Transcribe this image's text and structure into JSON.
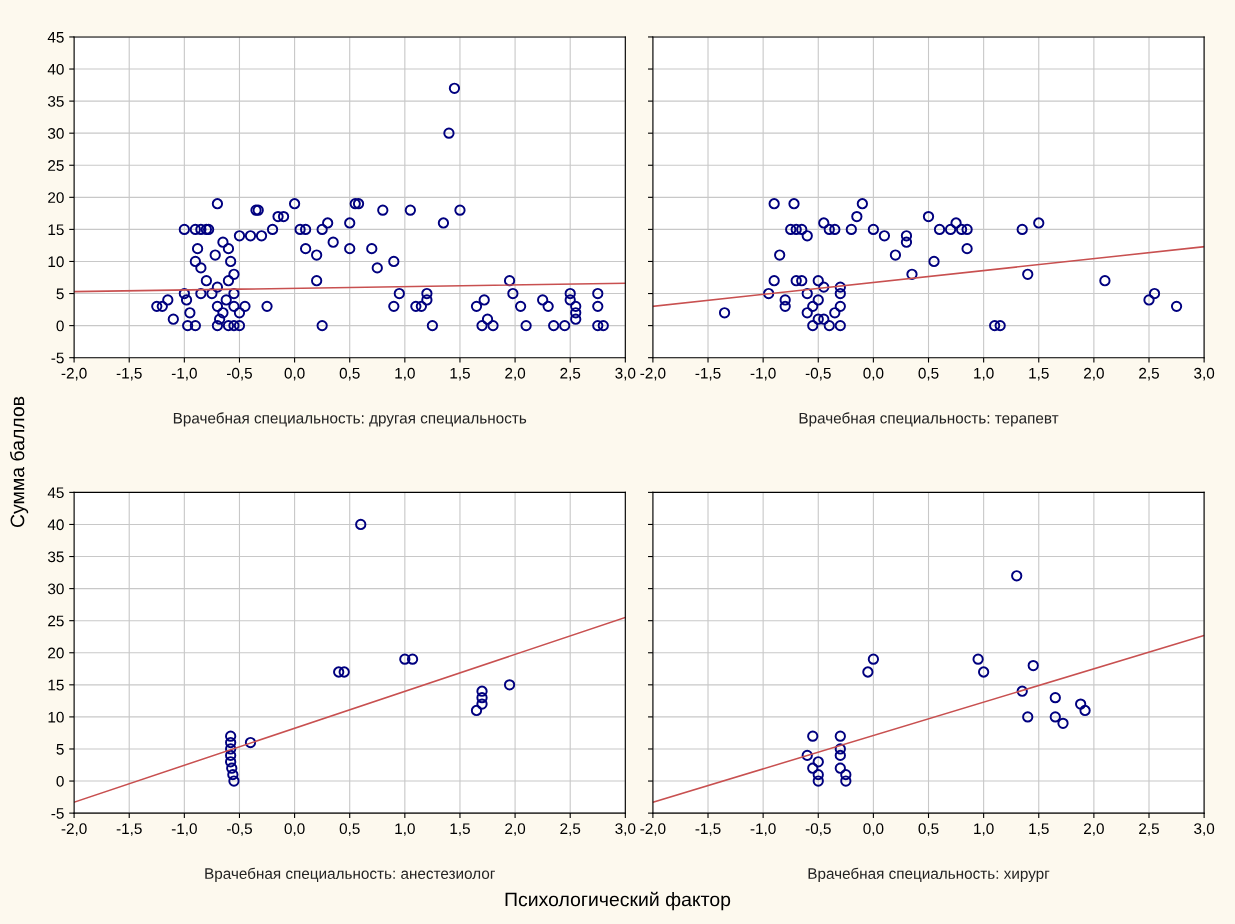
{
  "chart_data": [
    {
      "type": "scatter",
      "title": "Врачебная специальность: другая специальность",
      "ylabel": "Сумма баллов",
      "xlim": [
        -2,
        3
      ],
      "ylim": [
        -5,
        45
      ],
      "grid": true,
      "tick_labels": true,
      "xticks": [
        {
          "value": -2,
          "label": "-2,0"
        },
        {
          "value": -1.5,
          "label": "-1,5"
        },
        {
          "value": -1,
          "label": "-1,0"
        },
        {
          "value": -0.5,
          "label": "-0,5"
        },
        {
          "value": 0,
          "label": "0,0"
        },
        {
          "value": 0.5,
          "label": "0,5"
        },
        {
          "value": 1,
          "label": "1,0"
        },
        {
          "value": 1.5,
          "label": "1,5"
        },
        {
          "value": 2,
          "label": "2,0"
        },
        {
          "value": 2.5,
          "label": "2,5"
        },
        {
          "value": 3,
          "label": "3,0"
        }
      ],
      "yticks": [
        -5,
        0,
        5,
        10,
        15,
        20,
        25,
        30,
        35,
        40,
        45
      ],
      "series": [
        {
          "marker": "circle",
          "color": "#00007f",
          "x": [
            -1.25,
            -1.2,
            -1.15,
            -1.1,
            -1.0,
            -1.0,
            -0.98,
            -0.97,
            -0.95,
            -0.9,
            -0.9,
            -0.88,
            -0.9,
            -0.85,
            -0.85,
            -0.8,
            -0.85,
            -0.8,
            -0.78,
            -0.72,
            -0.7,
            -0.7,
            -0.7,
            -0.65,
            -0.6,
            -0.6,
            -0.58,
            -0.55,
            -0.55,
            -0.55,
            -0.55,
            -0.5,
            -0.5,
            -0.6,
            -0.65,
            -0.75,
            -0.68,
            -0.62,
            -0.7,
            -0.5,
            -0.45,
            -0.4,
            -0.35,
            -0.33,
            -0.25,
            -0.3,
            -0.2,
            -0.15,
            -0.1,
            0.0,
            0.05,
            0.1,
            0.1,
            0.2,
            0.2,
            0.25,
            0.25,
            0.3,
            0.35,
            0.5,
            0.5,
            0.55,
            0.58,
            0.7,
            0.75,
            0.8,
            0.9,
            0.9,
            0.95,
            1.05,
            1.1,
            1.15,
            1.2,
            1.2,
            1.25,
            1.35,
            1.4,
            1.45,
            1.5,
            1.65,
            1.7,
            1.72,
            1.75,
            1.8,
            1.95,
            1.98,
            2.05,
            2.1,
            2.25,
            2.3,
            2.35,
            2.45,
            2.5,
            2.5,
            2.55,
            2.55,
            2.55,
            2.75,
            2.75,
            2.75,
            2.8
          ],
          "values": [
            3,
            3,
            4,
            1,
            15,
            5,
            4,
            0,
            2,
            0,
            15,
            12,
            10,
            9,
            15,
            15,
            5,
            7,
            15,
            11,
            19,
            3,
            0,
            13,
            7,
            12,
            10,
            8,
            5,
            3,
            0,
            14,
            0,
            0,
            2,
            5,
            1,
            4,
            6,
            2,
            3,
            14,
            18,
            18,
            3,
            14,
            15,
            17,
            17,
            19,
            15,
            12,
            15,
            11,
            7,
            15,
            0,
            16,
            13,
            16,
            12,
            19,
            19,
            12,
            9,
            18,
            10,
            3,
            5,
            18,
            3,
            3,
            5,
            4,
            0,
            16,
            30,
            37,
            18,
            3,
            0,
            4,
            1,
            0,
            7,
            5,
            3,
            0,
            4,
            3,
            0,
            0,
            5,
            4,
            3,
            2,
            1,
            5,
            3,
            0,
            0
          ]
        },
        {
          "type": "line",
          "color": "#c85050",
          "x": [
            -2,
            3
          ],
          "values": [
            5.3,
            6.6
          ]
        }
      ]
    },
    {
      "type": "scatter",
      "title": "Врачебная специальность: терапевт",
      "xlim": [
        -2,
        3
      ],
      "ylim": [
        -5,
        45
      ],
      "grid": true,
      "tick_labels": "x",
      "xticks": [
        {
          "value": -2,
          "label": "-2,0"
        },
        {
          "value": -1.5,
          "label": "-1,5"
        },
        {
          "value": -1,
          "label": "-1,0"
        },
        {
          "value": -0.5,
          "label": "-0,5"
        },
        {
          "value": 0,
          "label": "0,0"
        },
        {
          "value": 0.5,
          "label": "0,5"
        },
        {
          "value": 1,
          "label": "1,0"
        },
        {
          "value": 1.5,
          "label": "1,5"
        },
        {
          "value": 2,
          "label": "2,0"
        },
        {
          "value": 2.5,
          "label": "2,5"
        },
        {
          "value": 3,
          "label": "3,0"
        }
      ],
      "yticks": [
        -5,
        0,
        5,
        10,
        15,
        20,
        25,
        30,
        35,
        40,
        45
      ],
      "series": [
        {
          "marker": "circle",
          "color": "#00007f",
          "x": [
            -1.35,
            -0.95,
            -0.9,
            -0.85,
            -0.9,
            -0.8,
            -0.8,
            -0.75,
            -0.72,
            -0.7,
            -0.65,
            -0.7,
            -0.65,
            -0.6,
            -0.6,
            -0.6,
            -0.55,
            -0.5,
            -0.5,
            -0.45,
            -0.4,
            -0.35,
            -0.45,
            -0.4,
            -0.3,
            -0.3,
            -0.3,
            -0.3,
            -0.2,
            -0.15,
            -0.1,
            0.0,
            0.1,
            0.3,
            0.2,
            0.3,
            0.35,
            0.5,
            0.55,
            0.6,
            0.7,
            0.75,
            0.8,
            0.85,
            0.85,
            1.1,
            1.15,
            1.35,
            1.4,
            1.5,
            2.1,
            2.5,
            2.55,
            2.75,
            -0.55,
            -0.45,
            -0.5,
            -0.35
          ],
          "values": [
            2,
            5,
            19,
            11,
            7,
            4,
            3,
            15,
            19,
            15,
            15,
            7,
            7,
            14,
            5,
            2,
            0,
            7,
            4,
            16,
            15,
            15,
            1,
            0,
            6,
            5,
            3,
            0,
            15,
            17,
            19,
            15,
            14,
            14,
            11,
            13,
            8,
            17,
            10,
            15,
            15,
            16,
            15,
            15,
            12,
            0,
            0,
            15,
            8,
            16,
            7,
            4,
            5,
            3,
            3,
            6,
            1,
            2
          ]
        },
        {
          "type": "line",
          "color": "#c85050",
          "x": [
            -2,
            3
          ],
          "values": [
            3.0,
            12.3
          ]
        }
      ]
    },
    {
      "type": "scatter",
      "title": "Врачебная специальность: анестезиолог",
      "xlabel": "Психологический фактор",
      "xlim": [
        -2,
        3
      ],
      "ylim": [
        -5,
        45
      ],
      "grid": true,
      "tick_labels": true,
      "xticks": [
        {
          "value": -2,
          "label": "-2,0"
        },
        {
          "value": -1.5,
          "label": "-1,5"
        },
        {
          "value": -1,
          "label": "-1,0"
        },
        {
          "value": -0.5,
          "label": "-0,5"
        },
        {
          "value": 0,
          "label": "0,0"
        },
        {
          "value": 0.5,
          "label": "0,5"
        },
        {
          "value": 1,
          "label": "1,0"
        },
        {
          "value": 1.5,
          "label": "1,5"
        },
        {
          "value": 2,
          "label": "2,0"
        },
        {
          "value": 2.5,
          "label": "2,5"
        },
        {
          "value": 3,
          "label": "3,0"
        }
      ],
      "yticks": [
        -5,
        0,
        5,
        10,
        15,
        20,
        25,
        30,
        35,
        40,
        45
      ],
      "series": [
        {
          "marker": "circle",
          "color": "#00007f",
          "x": [
            -0.58,
            -0.58,
            -0.58,
            -0.58,
            -0.58,
            -0.57,
            -0.56,
            -0.55,
            -0.4,
            0.4,
            0.45,
            0.6,
            1.0,
            1.07,
            1.65,
            1.7,
            1.7,
            1.7,
            1.95
          ],
          "values": [
            7,
            6,
            5,
            4,
            3,
            2,
            1,
            0,
            6,
            17,
            17,
            40,
            19,
            19,
            11,
            12,
            13,
            14,
            15
          ]
        },
        {
          "type": "line",
          "color": "#c85050",
          "x": [
            -2,
            3
          ],
          "values": [
            -3.3,
            25.5
          ]
        }
      ]
    },
    {
      "type": "scatter",
      "title": "Врачебная специальность: хирург",
      "xlim": [
        -2,
        3
      ],
      "ylim": [
        -5,
        45
      ],
      "grid": true,
      "tick_labels": "x",
      "xticks": [
        {
          "value": -2,
          "label": "-2,0"
        },
        {
          "value": -1.5,
          "label": "-1,5"
        },
        {
          "value": -1,
          "label": "-1,0"
        },
        {
          "value": -0.5,
          "label": "-0,5"
        },
        {
          "value": 0,
          "label": "0,0"
        },
        {
          "value": 0.5,
          "label": "0,5"
        },
        {
          "value": 1,
          "label": "1,0"
        },
        {
          "value": 1.5,
          "label": "1,5"
        },
        {
          "value": 2,
          "label": "2,0"
        },
        {
          "value": 2.5,
          "label": "2,5"
        },
        {
          "value": 3,
          "label": "3,0"
        }
      ],
      "yticks": [
        -5,
        0,
        5,
        10,
        15,
        20,
        25,
        30,
        35,
        40,
        45
      ],
      "series": [
        {
          "marker": "circle",
          "color": "#00007f",
          "x": [
            -0.6,
            -0.55,
            -0.55,
            -0.5,
            -0.5,
            -0.5,
            -0.3,
            -0.3,
            -0.3,
            -0.3,
            -0.25,
            -0.25,
            -0.05,
            0.0,
            0.95,
            1.0,
            1.3,
            1.35,
            1.4,
            1.45,
            1.65,
            1.65,
            1.72,
            1.88,
            1.92
          ],
          "values": [
            4,
            7,
            2,
            3,
            1,
            0,
            5,
            7,
            4,
            2,
            1,
            0,
            17,
            19,
            19,
            17,
            32,
            14,
            10,
            18,
            13,
            10,
            9,
            12,
            11
          ]
        },
        {
          "type": "line",
          "color": "#c85050",
          "x": [
            -2,
            3
          ],
          "values": [
            -3.3,
            22.7
          ]
        }
      ]
    }
  ]
}
